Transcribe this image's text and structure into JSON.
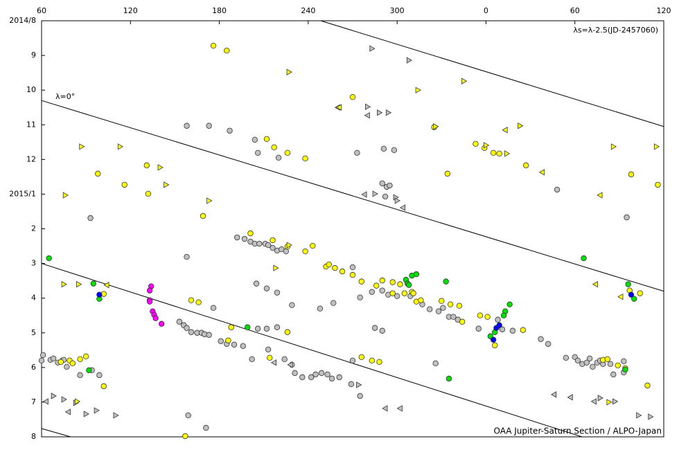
{
  "chart_data": {
    "type": "scatter",
    "annotations": [
      "λs=λ-2.5(JD-2457060)",
      "λ=0°",
      "OAA Jupiter-Saturn Section / ALPO-Japan"
    ],
    "xlim": [
      60,
      480
    ],
    "xticks": [
      60,
      120,
      180,
      240,
      300,
      {
        "value": 360,
        "label": "0"
      },
      {
        "value": 420,
        "label": "60"
      },
      {
        "value": 480,
        "label": "120"
      }
    ],
    "ylim": [
      0,
      12
    ],
    "y_inverted": true,
    "yticks": [
      {
        "value": 0,
        "label": "2014/8"
      },
      {
        "value": 1,
        "label": "9"
      },
      {
        "value": 2,
        "label": "10"
      },
      {
        "value": 3,
        "label": "11"
      },
      {
        "value": 4,
        "label": "12"
      },
      {
        "value": 5,
        "label": "2015/1"
      },
      {
        "value": 6,
        "label": "2"
      },
      {
        "value": 7,
        "label": "3"
      },
      {
        "value": 8,
        "label": "4"
      },
      {
        "value": 9,
        "label": "5"
      },
      {
        "value": 10,
        "label": "6"
      },
      {
        "value": 11,
        "label": "7"
      },
      {
        "value": 12,
        "label": "8"
      }
    ],
    "grid": false,
    "reference_lines": [
      {
        "x": [
          248.5,
          480
        ],
        "y": [
          0,
          3.05
        ]
      },
      {
        "x": [
          60,
          480
        ],
        "y": [
          2.3,
          7.8
        ]
      },
      {
        "x": [
          60,
          424.8
        ],
        "y": [
          7.0,
          12
        ]
      },
      {
        "x": [
          60,
          79.6
        ],
        "y": [
          11.76,
          12
        ]
      }
    ],
    "series": [
      {
        "color": "#c0c0c0",
        "marker": "circle",
        "x": [
          61,
          60,
          66,
          68,
          71,
          74,
          75,
          77,
          86,
          94,
          93,
          158,
          173,
          187,
          204,
          206,
          220,
          192,
          197,
          201,
          204,
          207,
          211,
          213,
          216,
          219,
          222,
          225,
          158,
          176,
          205,
          212,
          219,
          229,
          248,
          257,
          270,
          275,
          283,
          290,
          294,
          300,
          309,
          317,
          322,
          328,
          331,
          335,
          338,
          341,
          355,
          368,
          371,
          378,
          397,
          402,
          408,
          455,
          290,
          293,
          295,
          292,
          291,
          298,
          273,
          153,
          156,
          158,
          161,
          165,
          168,
          170,
          173,
          181,
          185,
          190,
          196,
          202,
          206,
          212,
          213,
          219,
          224,
          229,
          231,
          236,
          242,
          245,
          249,
          253,
          256,
          261,
          270,
          275,
          285,
          290,
          269,
          326,
          414,
          420,
          422,
          425,
          428,
          430,
          432,
          435,
          437,
          439,
          444,
          453,
          453,
          446,
          159,
          171,
          99
        ],
        "y": [
          9.64,
          9.8,
          9.78,
          9.74,
          9.86,
          9.8,
          9.78,
          9.98,
          10.22,
          10.08,
          5.69,
          3.03,
          3.03,
          3.17,
          3.43,
          3.81,
          3.95,
          6.25,
          6.29,
          6.37,
          6.43,
          6.43,
          6.43,
          6.47,
          6.55,
          6.63,
          6.59,
          6.65,
          6.81,
          8.28,
          7.58,
          7.72,
          7.84,
          8.2,
          8.3,
          8.14,
          7.11,
          7.98,
          7.82,
          7.78,
          7.9,
          7.94,
          7.94,
          8.18,
          8.32,
          8.38,
          8.28,
          8.54,
          8.54,
          8.62,
          8.88,
          8.62,
          8.9,
          8.94,
          9.18,
          9.32,
          4.87,
          5.67,
          4.69,
          4.79,
          4.75,
          5.07,
          3.69,
          3.73,
          3.81,
          8.68,
          8.78,
          8.86,
          8.98,
          9.0,
          9.0,
          9.04,
          9.06,
          9.24,
          9.32,
          9.34,
          9.38,
          9.76,
          8.88,
          8.88,
          9.48,
          8.84,
          9.76,
          9.92,
          10.16,
          10.28,
          10.28,
          10.2,
          10.16,
          10.2,
          10.32,
          10.28,
          9.8,
          10.82,
          8.86,
          8.94,
          10.48,
          9.88,
          9.72,
          9.7,
          9.8,
          9.9,
          9.86,
          9.74,
          9.98,
          9.86,
          9.8,
          9.9,
          9.9,
          9.82,
          10.14,
          10.2,
          11.38,
          11.74,
          10.22
        ]
      },
      {
        "color": "#ffff00",
        "marker": "circle",
        "x": [
          176,
          185,
          131,
          98,
          116,
          132,
          169,
          212,
          217,
          226,
          238,
          270,
          325,
          353,
          359,
          365,
          369,
          387,
          334,
          458,
          476,
          201,
          216,
          226,
          238,
          243,
          252,
          254,
          258,
          263,
          270,
          276,
          290,
          286,
          297,
          297,
          302,
          305,
          310,
          313,
          316,
          330,
          336,
          342,
          344,
          356,
          361,
          366,
          385,
          161,
          166,
          188,
          186,
          214,
          226,
          276,
          283,
          288,
          102,
          86,
          79,
          90,
          81,
          73,
          454,
          449,
          439,
          442,
          457,
          464,
          102,
          157,
          469,
          311
        ],
        "y": [
          0.72,
          0.86,
          4.17,
          4.41,
          4.73,
          4.99,
          5.63,
          3.41,
          3.65,
          3.81,
          3.97,
          2.2,
          3.07,
          3.55,
          3.67,
          3.81,
          3.83,
          4.17,
          4.41,
          4.43,
          4.73,
          6.13,
          6.33,
          6.51,
          6.65,
          6.49,
          7.09,
          7.03,
          7.13,
          7.23,
          7.33,
          7.52,
          7.49,
          7.64,
          7.54,
          7.86,
          7.6,
          7.86,
          7.82,
          8.1,
          8.06,
          8.08,
          8.18,
          8.22,
          8.68,
          8.5,
          8.54,
          9.36,
          8.92,
          8.06,
          8.12,
          8.84,
          9.22,
          9.72,
          8.98,
          9.7,
          9.8,
          9.84,
          10.54,
          9.76,
          9.8,
          9.68,
          9.88,
          9.84,
          10.02,
          9.94,
          9.78,
          9.76,
          7.78,
          7.86,
          7.88,
          11.98,
          10.52,
          7.86
        ]
      },
      {
        "color": "#00e000",
        "marker": "circle",
        "x": [
          65,
          95,
          99,
          199,
          426,
          306,
          307,
          308,
          310,
          313,
          333,
          376,
          373,
          372,
          366,
          363,
          335,
          456,
          460,
          92,
          454
        ],
        "y": [
          6.85,
          7.58,
          8.02,
          8.84,
          6.85,
          7.47,
          7.58,
          7.62,
          7.35,
          7.31,
          7.52,
          8.18,
          8.38,
          8.5,
          8.98,
          9.1,
          10.32,
          7.6,
          8.02,
          10.08,
          10.06
        ]
      },
      {
        "color": "#0000ff",
        "marker": "circle",
        "x": [
          99,
          458,
          369,
          367,
          365
        ],
        "y": [
          7.9,
          7.9,
          8.78,
          8.86,
          9.2
        ]
      },
      {
        "color": "#ff00ff",
        "marker": "circle",
        "x": [
          134,
          133,
          133,
          133,
          135,
          136,
          137,
          141
        ],
        "y": [
          7.66,
          7.78,
          8.06,
          8.1,
          8.38,
          8.48,
          8.58,
          8.74
        ]
      },
      {
        "color": "#c0c0c0",
        "marker": "tri-right",
        "x": [
          283,
          308,
          280,
          288,
          294,
          285,
          299,
          300,
          68,
          75,
          83,
          90,
          97,
          110,
          274,
          437,
          447,
          463,
          471
        ],
        "y": [
          0.8,
          1.14,
          2.48,
          2.65,
          2.65,
          4.99,
          5.09,
          5.19,
          10.82,
          10.92,
          11.02,
          11.34,
          11.24,
          11.38,
          10.5,
          10.88,
          10.98,
          11.38,
          11.42
        ]
      },
      {
        "color": "#c0c0c0",
        "marker": "tri-left",
        "x": [
          260,
          280,
          278,
          304,
          228,
          217,
          63,
          78,
          302,
          292,
          406,
          417,
          433
        ],
        "y": [
          2.5,
          2.73,
          5.01,
          5.39,
          9.92,
          9.86,
          10.98,
          11.28,
          11.18,
          11.18,
          10.78,
          10.86,
          10.98
        ]
      },
      {
        "color": "#ffff00",
        "marker": "tri-right",
        "x": [
          227,
          314,
          345,
          87,
          113,
          140,
          144,
          76,
          173,
          446,
          475,
          383,
          374,
          360,
          218,
          227,
          75,
          85,
          443,
          84,
          326
        ],
        "y": [
          1.48,
          2.0,
          1.74,
          3.63,
          3.63,
          4.23,
          4.73,
          5.03,
          5.19,
          3.63,
          3.63,
          3.03,
          3.83,
          3.59,
          7.13,
          6.47,
          7.6,
          7.6,
          11.0,
          10.98,
          3.05
        ]
      },
      {
        "color": "#ffff00",
        "marker": "tri-left",
        "x": [
          373,
          398,
          437,
          434,
          451,
          104,
          261
        ],
        "y": [
          3.15,
          4.37,
          5.03,
          7.6,
          7.96,
          7.62,
          2.5
        ]
      }
    ]
  }
}
